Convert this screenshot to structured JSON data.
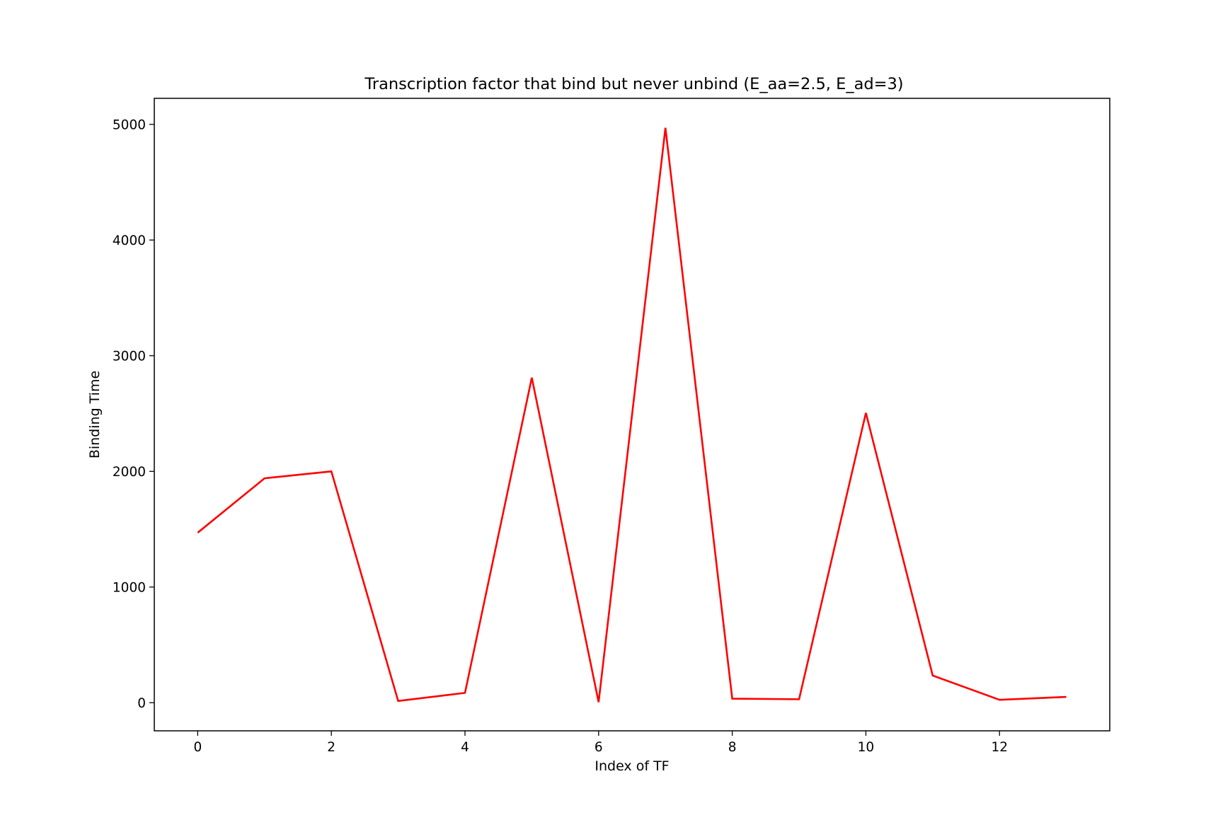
{
  "chart_data": {
    "type": "line",
    "title": "Transcription factor that bind but never unbind (E_aa=2.5, E_ad=3)",
    "xlabel": "Index of TF",
    "ylabel": "Binding Time",
    "x": [
      0,
      1,
      2,
      3,
      4,
      5,
      6,
      7,
      8,
      9,
      10,
      11,
      12,
      13
    ],
    "series": [
      {
        "values": [
          1470,
          1940,
          2000,
          15,
          85,
          2810,
          5,
          4970,
          35,
          30,
          2505,
          235,
          25,
          50
        ],
        "color": "#ff0000"
      }
    ],
    "xlim": [
      -0.65,
      13.65
    ],
    "ylim": [
      -243,
      5225
    ],
    "xticks": [
      "0",
      "2",
      "4",
      "6",
      "8",
      "10",
      "12"
    ],
    "yticks": [
      "0",
      "1000",
      "2000",
      "3000",
      "4000",
      "5000"
    ],
    "grid": false,
    "legend": "none"
  }
}
